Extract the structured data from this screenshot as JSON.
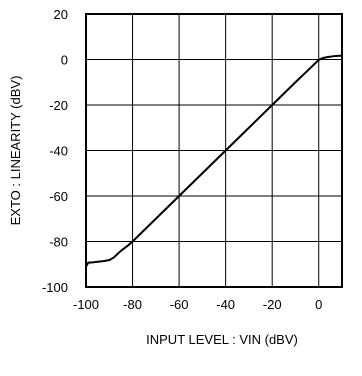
{
  "chart_data": {
    "type": "line",
    "title": "",
    "xlabel": "INPUT LEVEL : VIN (dBV)",
    "ylabel": "EXTO : LINEARITY (dBV)",
    "xlim": [
      -100,
      10
    ],
    "ylim": [
      -100,
      20
    ],
    "x_ticks": [
      -100,
      -80,
      -60,
      -40,
      -20,
      0
    ],
    "y_ticks": [
      20,
      0,
      -20,
      -40,
      -60,
      -80,
      -100
    ],
    "x_tick_labels": [
      "-100",
      "-80",
      "-60",
      "-40",
      "-20",
      "0"
    ],
    "y_tick_labels": [
      "20",
      "0",
      "-20",
      "-40",
      "-60",
      "-80",
      "-100"
    ],
    "grid": true,
    "line_color": "#000000",
    "series": [
      {
        "x": [
          -100,
          -99,
          -97,
          -96,
          -93,
          -90,
          -88,
          -86,
          -84,
          -82,
          -80,
          -70,
          -60,
          -50,
          -40,
          -30,
          -20,
          -10,
          0,
          1,
          2,
          4,
          6,
          8,
          10
        ],
        "y": [
          -91,
          -89.3,
          -89.2,
          -89,
          -88.7,
          -88.2,
          -87,
          -85,
          -83.3,
          -81.8,
          -80,
          -70,
          -60,
          -50,
          -40,
          -30,
          -20,
          -10,
          -0.2,
          0.3,
          0.7,
          1.1,
          1.4,
          1.6,
          1.7
        ]
      }
    ]
  }
}
